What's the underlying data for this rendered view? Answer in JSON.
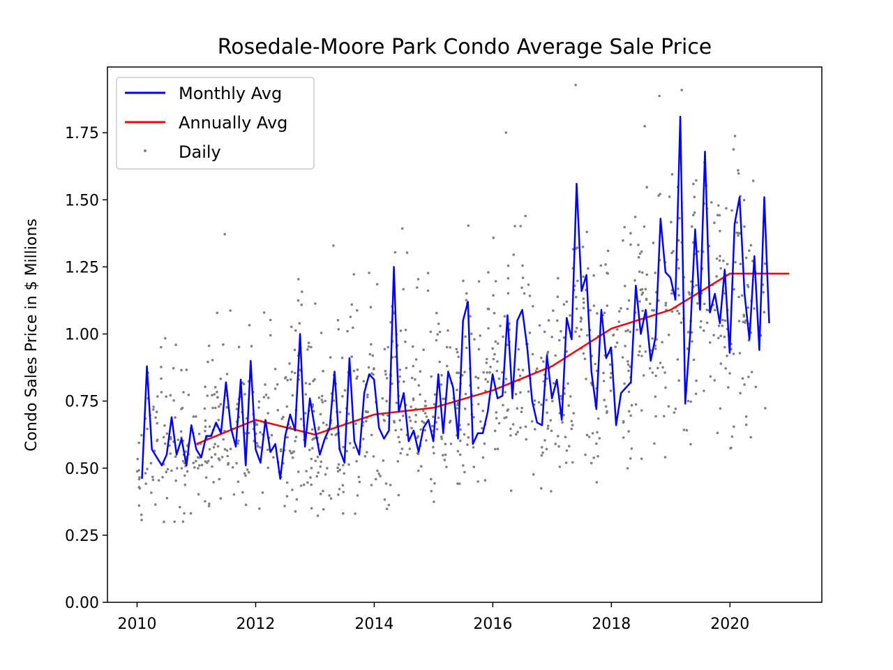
{
  "chart_data": {
    "type": "line",
    "title": "Rosedale-Moore Park Condo Average Sale Price",
    "xlabel": "",
    "ylabel": "Condo Sales Price in $ Millions",
    "xlim": [
      2009.5,
      2021.55
    ],
    "ylim": [
      0.0,
      1.995
    ],
    "x_ticks": [
      2010,
      2012,
      2014,
      2016,
      2018,
      2020
    ],
    "x_tick_labels": [
      "2010",
      "2012",
      "2014",
      "2016",
      "2018",
      "2020"
    ],
    "y_ticks": [
      0.0,
      0.25,
      0.5,
      0.75,
      1.0,
      1.25,
      1.5,
      1.75
    ],
    "y_tick_labels": [
      "0.00",
      "0.25",
      "0.50",
      "0.75",
      "1.00",
      "1.25",
      "1.50",
      "1.75"
    ],
    "grid": false,
    "legend_position": "upper-left",
    "legend": [
      "Monthly Avg",
      "Annually Avg",
      "Daily"
    ],
    "colors": {
      "monthly": "#0000ff",
      "annual": "#ff0000",
      "daily": "#808080",
      "axes": "#000000"
    },
    "series": [
      {
        "name": "Monthly Avg",
        "x_start": 2010.083,
        "x_step": 0.0833,
        "values": [
          0.46,
          0.88,
          0.57,
          0.54,
          0.51,
          0.55,
          0.69,
          0.55,
          0.61,
          0.51,
          0.66,
          0.57,
          0.54,
          0.62,
          0.62,
          0.67,
          0.63,
          0.82,
          0.65,
          0.58,
          0.83,
          0.51,
          0.9,
          0.57,
          0.52,
          0.68,
          0.56,
          0.59,
          0.46,
          0.62,
          0.7,
          0.64,
          1.0,
          0.58,
          0.76,
          0.65,
          0.55,
          0.61,
          0.65,
          0.86,
          0.57,
          0.52,
          0.91,
          0.6,
          0.55,
          0.78,
          0.85,
          0.83,
          0.65,
          0.61,
          0.64,
          1.25,
          0.71,
          0.78,
          0.6,
          0.64,
          0.56,
          0.65,
          0.68,
          0.6,
          0.85,
          0.63,
          0.86,
          0.8,
          0.61,
          1.05,
          1.12,
          0.59,
          0.63,
          0.63,
          0.71,
          0.85,
          0.76,
          0.77,
          1.07,
          0.76,
          1.05,
          1.09,
          0.95,
          0.75,
          0.67,
          0.66,
          0.92,
          0.76,
          0.83,
          0.68,
          1.06,
          0.98,
          1.56,
          1.16,
          1.22,
          0.86,
          0.72,
          1.09,
          0.91,
          0.95,
          0.66,
          0.78,
          0.8,
          0.82,
          1.18,
          1.0,
          1.09,
          0.9,
          0.99,
          1.43,
          1.23,
          1.21,
          1.13,
          1.81,
          0.74,
          1.0,
          1.39,
          1.09,
          1.68,
          1.08,
          1.15,
          1.04,
          1.24,
          0.93,
          1.41,
          1.51,
          1.15,
          0.98,
          1.29,
          0.94,
          1.51,
          1.04
        ]
      },
      {
        "name": "Annually Avg",
        "x": [
          2011.0,
          2012.0,
          2013.0,
          2014.0,
          2015.0,
          2016.0,
          2017.0,
          2018.0,
          2019.0,
          2020.0,
          2021.0
        ],
        "values": [
          0.59,
          0.68,
          0.625,
          0.7,
          0.725,
          0.79,
          0.88,
          1.02,
          1.09,
          1.225,
          1.225
        ]
      },
      {
        "name": "Daily",
        "points": "scatter: ~1200 daily sale prices from 2010 to 2020.6, mostly between 0.2 and 2.0, shown as small gray dots"
      }
    ]
  }
}
